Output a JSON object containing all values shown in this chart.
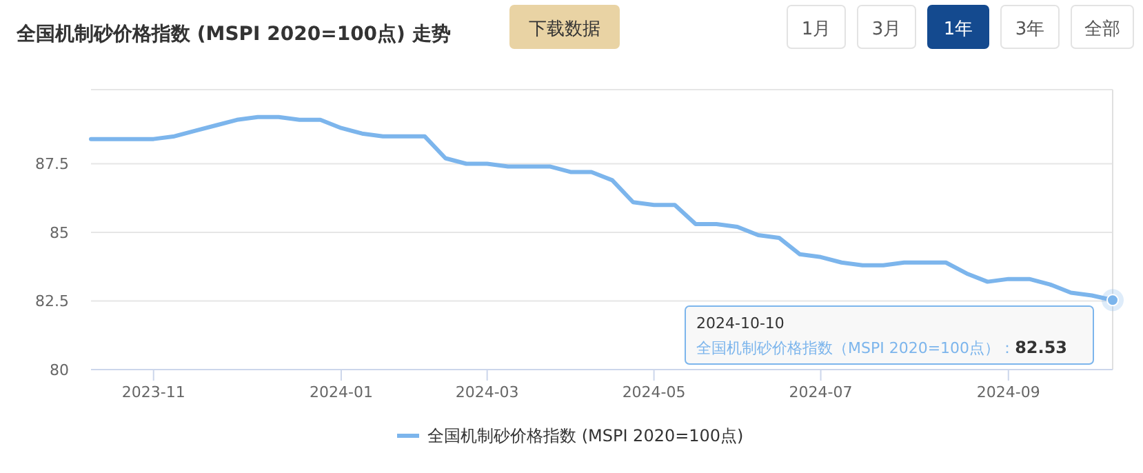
{
  "chart_data": {
    "type": "line",
    "title": "全国机制砂价格指数 (MSPI 2020=100点) 走势",
    "categories": [
      null,
      null,
      null,
      "2023-11",
      null,
      null,
      null,
      null,
      null,
      null,
      null,
      null,
      "2024-01",
      null,
      null,
      null,
      null,
      null,
      null,
      "2024-03",
      null,
      null,
      null,
      null,
      null,
      null,
      null,
      "2024-05",
      null,
      null,
      null,
      null,
      null,
      null,
      null,
      "2024-07",
      null,
      null,
      null,
      null,
      null,
      null,
      null,
      null,
      "2024-09",
      null,
      null,
      null,
      null,
      null
    ],
    "series": [
      {
        "name": "全国机制砂价格指数 (MSPI 2020=100点)",
        "color": "#7cb5ec",
        "values": [
          88.4,
          88.4,
          88.4,
          88.4,
          88.5,
          88.7,
          88.9,
          89.1,
          89.2,
          89.2,
          89.1,
          89.1,
          88.8,
          88.6,
          88.5,
          88.5,
          88.5,
          87.7,
          87.5,
          87.5,
          87.4,
          87.4,
          87.4,
          87.2,
          87.2,
          86.9,
          86.1,
          86.0,
          86.0,
          85.3,
          85.3,
          85.2,
          84.9,
          84.8,
          84.2,
          84.1,
          83.9,
          83.8,
          83.8,
          83.9,
          83.9,
          83.9,
          83.5,
          83.2,
          83.3,
          83.3,
          83.1,
          82.8,
          82.7,
          82.53
        ]
      }
    ],
    "ylim": [
      80,
      90.2
    ],
    "yticks": [
      80,
      82.5,
      85,
      87.5
    ],
    "grid": "y",
    "legend": "bottom",
    "marker": "none",
    "annotations": [
      "下载数据",
      "1月",
      "3月",
      "1年",
      "3年",
      "全部",
      "2024-10-10",
      "全国机制砂价格指数（MSPI 2020=100点）：**82.53**"
    ]
  }
}
